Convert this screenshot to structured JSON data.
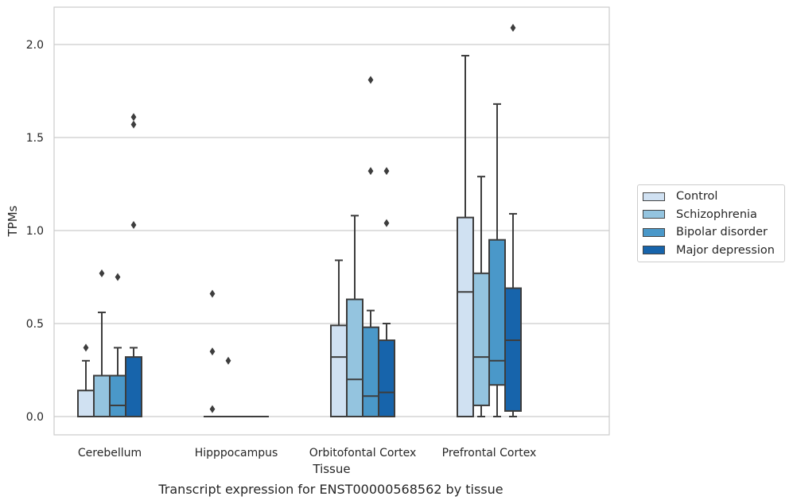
{
  "caption": "Transcript expression for ENST00000568562 by tissue",
  "chart_data": {
    "type": "boxplot",
    "xlabel": "Tissue",
    "ylabel": "TPMs",
    "ylim": [
      -0.1,
      2.2
    ],
    "yticks": [
      "0.0",
      "0.5",
      "1.0",
      "1.5",
      "2.0"
    ],
    "grid": "horizontal",
    "legend_position": "right",
    "categories": [
      "Cerebellum",
      "Hipppocampus",
      "Orbitofontal Cortex",
      "Prefrontal Cortex"
    ],
    "series": [
      {
        "name": "Control",
        "color": "#d0e1f2",
        "boxes": [
          {
            "whislo": 0.0,
            "q1": 0.0,
            "med": 0.0,
            "q3": 0.14,
            "whishi": 0.3,
            "fliers": [
              0.37
            ]
          },
          {
            "whislo": 0.0,
            "q1": 0.0,
            "med": 0.0,
            "q3": 0.0,
            "whishi": 0.0,
            "fliers": [
              0.04,
              0.35,
              0.66
            ]
          },
          {
            "whislo": 0.0,
            "q1": 0.0,
            "med": 0.32,
            "q3": 0.49,
            "whishi": 0.84,
            "fliers": []
          },
          {
            "whislo": 0.0,
            "q1": 0.0,
            "med": 0.67,
            "q3": 1.07,
            "whishi": 1.94,
            "fliers": []
          }
        ]
      },
      {
        "name": "Schizophrenia",
        "color": "#94c4df",
        "boxes": [
          {
            "whislo": 0.0,
            "q1": 0.0,
            "med": 0.0,
            "q3": 0.22,
            "whishi": 0.56,
            "fliers": [
              0.77
            ]
          },
          {
            "whislo": 0.0,
            "q1": 0.0,
            "med": 0.0,
            "q3": 0.0,
            "whishi": 0.0,
            "fliers": [
              0.3
            ]
          },
          {
            "whislo": 0.0,
            "q1": 0.0,
            "med": 0.2,
            "q3": 0.63,
            "whishi": 1.08,
            "fliers": []
          },
          {
            "whislo": 0.0,
            "q1": 0.06,
            "med": 0.32,
            "q3": 0.77,
            "whishi": 1.29,
            "fliers": []
          }
        ]
      },
      {
        "name": "Bipolar disorder",
        "color": "#4a98c9",
        "boxes": [
          {
            "whislo": 0.0,
            "q1": 0.0,
            "med": 0.06,
            "q3": 0.22,
            "whishi": 0.37,
            "fliers": [
              0.75
            ]
          },
          {
            "whislo": 0.0,
            "q1": 0.0,
            "med": 0.0,
            "q3": 0.0,
            "whishi": 0.0,
            "fliers": []
          },
          {
            "whislo": 0.0,
            "q1": 0.0,
            "med": 0.11,
            "q3": 0.48,
            "whishi": 0.57,
            "fliers": [
              1.32,
              1.81
            ]
          },
          {
            "whislo": 0.0,
            "q1": 0.17,
            "med": 0.3,
            "q3": 0.95,
            "whishi": 1.68,
            "fliers": []
          }
        ]
      },
      {
        "name": "Major depression",
        "color": "#1764ab",
        "boxes": [
          {
            "whislo": 0.0,
            "q1": 0.0,
            "med": 0.0,
            "q3": 0.32,
            "whishi": 0.37,
            "fliers": [
              1.03,
              1.57,
              1.61
            ]
          },
          {
            "whislo": 0.0,
            "q1": 0.0,
            "med": 0.0,
            "q3": 0.0,
            "whishi": 0.0,
            "fliers": []
          },
          {
            "whislo": 0.0,
            "q1": 0.0,
            "med": 0.13,
            "q3": 0.41,
            "whishi": 0.5,
            "fliers": [
              1.04,
              1.32
            ]
          },
          {
            "whislo": 0.0,
            "q1": 0.03,
            "med": 0.41,
            "q3": 0.69,
            "whishi": 1.09,
            "fliers": [
              2.09
            ]
          }
        ]
      }
    ]
  }
}
